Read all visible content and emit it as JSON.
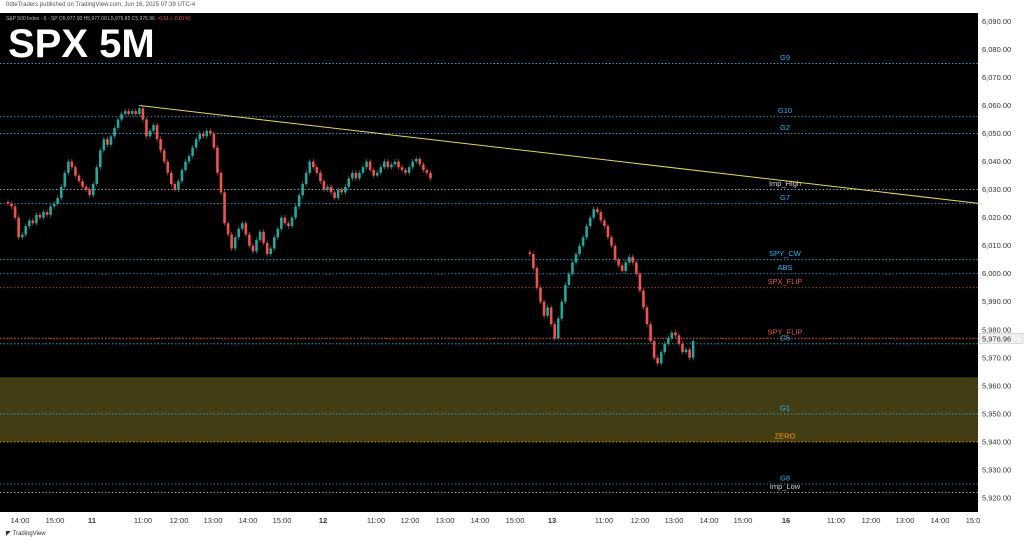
{
  "header": {
    "published": "0dteTraders published on TradingView.com, Jun 16, 2025 07:39 UTC-4"
  },
  "quote": {
    "symbol": "S&P 500 Index · 5 · SP",
    "open": "O5,977.00",
    "high": "H5,977.00",
    "low": "L5,976.85",
    "close": "C5,976.96",
    "change": "−0.51 (−0.01%)"
  },
  "footer": {
    "brand": "TradingView"
  },
  "colors": {
    "background": "#000000",
    "up": "#26a69a",
    "down": "#ef5350",
    "trendline": "#e6d85a",
    "gex_level": "#29b6f6",
    "flip_level": "#ef5350",
    "zero_level": "#ff9800",
    "zone_fill": "#4a4416"
  },
  "chart_data": {
    "type": "candlestick",
    "title": "SPX 5M",
    "interval": "5",
    "ylim": [
      5915,
      6093
    ],
    "y_ticks": [
      "6,090.00",
      "6,080.00",
      "6,070.00",
      "6,060.00",
      "6,050.00",
      "6,040.00",
      "6,030.00",
      "6,020.00",
      "6,010.00",
      "6,000.00",
      "5,990.00",
      "5,980.00",
      "5,970.00",
      "5,960.00",
      "5,950.00",
      "5,940.00",
      "5,930.00",
      "5,920.00"
    ],
    "y_tick_values": [
      6090,
      6080,
      6070,
      6060,
      6050,
      6040,
      6030,
      6020,
      6010,
      6000,
      5990,
      5980,
      5970,
      5960,
      5950,
      5940,
      5930,
      5920
    ],
    "x_tick_labels": [
      "14:00",
      "15:00",
      "11",
      "11:00",
      "12:00",
      "13:00",
      "14:00",
      "15:00",
      "12",
      "11:00",
      "12:00",
      "13:00",
      "14:00",
      "15:00",
      "13",
      "11:00",
      "12:00",
      "13:00",
      "14:00",
      "15:00",
      "16",
      "11:00",
      "12:00",
      "13:00",
      "14:00",
      "15:0"
    ],
    "x_tick_bold": [
      false,
      false,
      true,
      false,
      false,
      false,
      false,
      false,
      true,
      false,
      false,
      false,
      false,
      false,
      true,
      false,
      false,
      false,
      false,
      false,
      true,
      false,
      false,
      false,
      false,
      false
    ],
    "last_price": "5,976.96",
    "last_price_value": 5976.96,
    "levels": [
      {
        "label": "G9",
        "value": 6075,
        "kind": "gex"
      },
      {
        "label": "G10",
        "value": 6056,
        "kind": "gex"
      },
      {
        "label": "G2",
        "value": 6050,
        "kind": "gex"
      },
      {
        "label": "Imp_High",
        "value": 6030,
        "kind": "imp"
      },
      {
        "label": "G7",
        "value": 6025,
        "kind": "gex"
      },
      {
        "label": "SPY_CW",
        "value": 6005,
        "kind": "gex"
      },
      {
        "label": "ABS",
        "value": 6000,
        "kind": "gex"
      },
      {
        "label": "SPX_FLIP",
        "value": 5995,
        "kind": "flip"
      },
      {
        "label": "SPY_FLIP",
        "value": 5977,
        "kind": "flip"
      },
      {
        "label": "G6",
        "value": 5975,
        "kind": "gex"
      },
      {
        "label": "G1",
        "value": 5950,
        "kind": "gex"
      },
      {
        "label": "ZERO",
        "value": 5940,
        "kind": "zero"
      },
      {
        "label": "G8",
        "value": 5925,
        "kind": "gex"
      },
      {
        "label": "Imp_Low",
        "value": 5922,
        "kind": "imp"
      }
    ],
    "zone": {
      "from": 5940,
      "to": 5963
    },
    "trendline": {
      "from_bar": 37,
      "from_value": 6060,
      "to_bar": 274,
      "to_value": 6025
    },
    "sessions": [
      {
        "bar_offset": 0,
        "closes": [
          6025,
          6024,
          6020,
          6013,
          6014,
          6017,
          6019,
          6018,
          6021,
          6020,
          6022,
          6021,
          6024,
          6025,
          6027,
          6031,
          6036,
          6040,
          6038,
          6035,
          6033,
          6031,
          6030,
          6028,
          6032,
          6038,
          6044,
          6048,
          6046,
          6049,
          6052,
          6055,
          6057,
          6058,
          6057,
          6058,
          6057,
          6059,
          6055,
          6049,
          6051,
          6053,
          6048,
          6044,
          6040,
          6036,
          6032,
          6030,
          6033,
          6037,
          6040,
          6042,
          6045,
          6048,
          6050,
          6049,
          6051,
          6050,
          6045,
          6036,
          6029,
          6018,
          6014,
          6009,
          6013,
          6016,
          6018,
          6014,
          6010,
          6008,
          6012,
          6015,
          6011,
          6007,
          6009,
          6013,
          6016,
          6020,
          6018,
          6017,
          6020,
          6024,
          6028,
          6032,
          6036,
          6040,
          6038,
          6036,
          6033,
          6030,
          6031,
          6029,
          6027,
          6030,
          6029,
          6031,
          6034,
          6036,
          6034,
          6036,
          6038,
          6040,
          6037,
          6035,
          6036,
          6038,
          6040,
          6038,
          6039,
          6040,
          6038,
          6037,
          6036,
          6038,
          6040,
          6041,
          6039,
          6037,
          6036,
          6034
        ]
      },
      {
        "bar_offset": 147,
        "closes": [
          6007,
          6002,
          5995,
          5990,
          5985,
          5988,
          5982,
          5977,
          5984,
          5990,
          5996,
          6000,
          6004,
          6007,
          6010,
          6013,
          6017,
          6020,
          6023,
          6022,
          6019,
          6017,
          6013,
          6010,
          6005,
          6003,
          6001,
          6004,
          6006,
          6004,
          6000,
          5994,
          5988,
          5982,
          5976,
          5970,
          5968,
          5972,
          5975,
          5977,
          5979,
          5978,
          5975,
          5972,
          5973,
          5970,
          5976
        ]
      }
    ]
  }
}
